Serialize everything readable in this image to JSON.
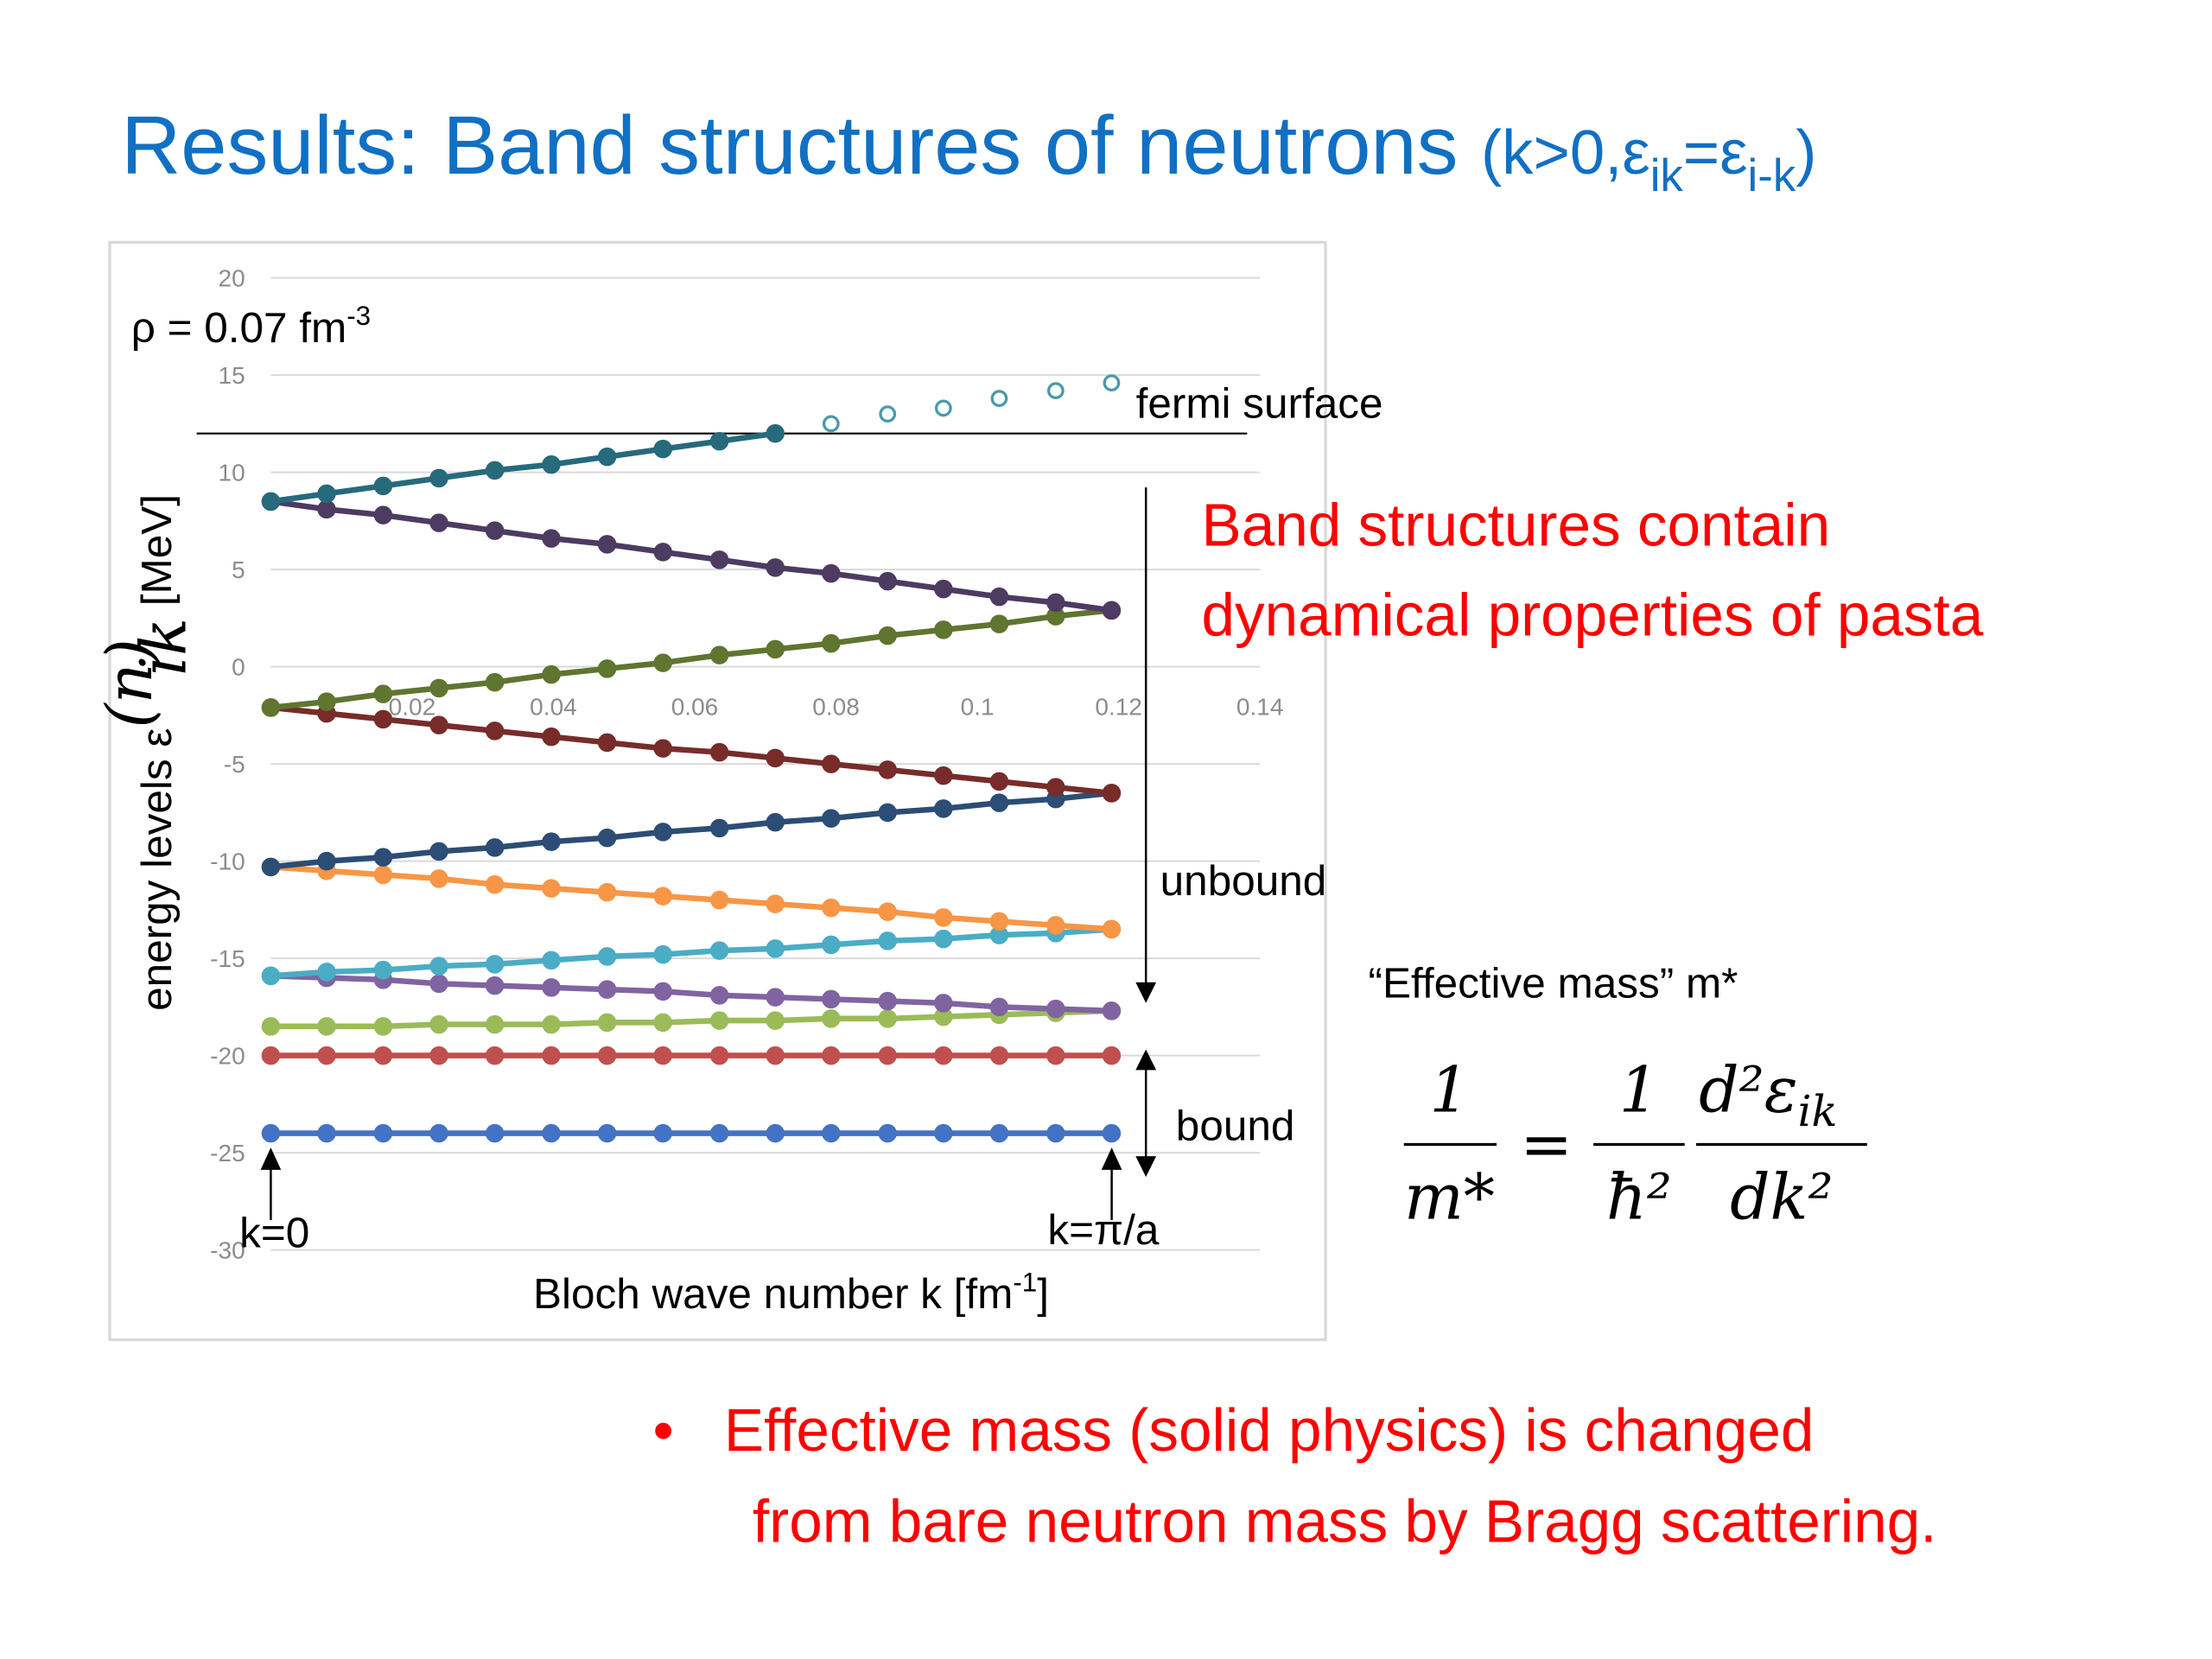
{
  "title": [
    "Results: Band structures of neutrons ",
    "(k>0,ε",
    "ik",
    "=ε",
    "i-k",
    ")"
  ],
  "chart_data": {
    "type": "line",
    "density_label": [
      "ρ = 0.07 fm",
      "-3"
    ],
    "x_label": [
      "Bloch wave number k [fm",
      "-1",
      "]"
    ],
    "y_label": [
      "energy levels ε",
      "(n)",
      "ik",
      " [MeV]"
    ],
    "x": [
      0,
      0.0079,
      0.0159,
      0.0238,
      0.0317,
      0.0397,
      0.0476,
      0.0555,
      0.0635,
      0.0714,
      0.0793,
      0.0873,
      0.0952,
      0.1031,
      0.1111,
      0.119
    ],
    "xlim": [
      0,
      0.14
    ],
    "xticks": [
      0.02,
      0.04,
      0.06,
      0.08,
      0.1,
      0.12,
      0.14
    ],
    "ylim": [
      -30,
      20
    ],
    "yticks": [
      20,
      15,
      10,
      5,
      0,
      -5,
      -10,
      -15,
      -20,
      -25,
      -30
    ],
    "grid": true,
    "series": [
      {
        "color": "#4472c4",
        "values": [
          -24,
          -24,
          -24,
          -24,
          -24,
          -24,
          -24,
          -24,
          -24,
          -24,
          -24,
          -24,
          -24,
          -24,
          -24,
          -24
        ]
      },
      {
        "color": "#c0504d",
        "values": [
          -20,
          -20,
          -20,
          -20,
          -20,
          -20,
          -20,
          -20,
          -20,
          -20,
          -20,
          -20,
          -20,
          -20,
          -20,
          -20
        ]
      },
      {
        "color": "#9bbb59",
        "values": [
          -18.5,
          -18.5,
          -18.5,
          -18.4,
          -18.4,
          -18.4,
          -18.3,
          -18.3,
          -18.2,
          -18.2,
          -18.1,
          -18.1,
          -18,
          -17.9,
          -17.8,
          -17.7
        ]
      },
      {
        "color": "#8064a2",
        "values": [
          -15.9,
          -16.0,
          -16.1,
          -16.3,
          -16.4,
          -16.5,
          -16.6,
          -16.7,
          -16.9,
          -17.0,
          -17.1,
          -17.2,
          -17.3,
          -17.5,
          -17.6,
          -17.7
        ]
      },
      {
        "color": "#4bacc6",
        "values": [
          -15.9,
          -15.7,
          -15.6,
          -15.4,
          -15.3,
          -15.1,
          -14.9,
          -14.8,
          -14.6,
          -14.5,
          -14.3,
          -14.1,
          -14.0,
          -13.8,
          -13.7,
          -13.5
        ]
      },
      {
        "color": "#f79646",
        "values": [
          -10.3,
          -10.5,
          -10.7,
          -10.9,
          -11.2,
          -11.4,
          -11.6,
          -11.8,
          -12.0,
          -12.2,
          -12.4,
          -12.6,
          -12.9,
          -13.1,
          -13.3,
          -13.5
        ]
      },
      {
        "color": "#2c4d75",
        "values": [
          -10.3,
          -10.0,
          -9.8,
          -9.5,
          -9.3,
          -9.0,
          -8.8,
          -8.5,
          -8.3,
          -8.0,
          -7.8,
          -7.5,
          -7.3,
          -7.0,
          -6.8,
          -6.5
        ]
      },
      {
        "color": "#772c2a",
        "values": [
          -2.1,
          -2.4,
          -2.7,
          -3.0,
          -3.3,
          -3.6,
          -3.9,
          -4.2,
          -4.4,
          -4.7,
          -5.0,
          -5.3,
          -5.6,
          -5.9,
          -6.2,
          -6.5
        ]
      },
      {
        "color": "#5f7530",
        "values": [
          -2.1,
          -1.8,
          -1.4,
          -1.1,
          -0.8,
          -0.4,
          -0.1,
          0.2,
          0.6,
          0.9,
          1.2,
          1.6,
          1.9,
          2.2,
          2.6,
          2.9
        ]
      },
      {
        "color": "#4d3b62",
        "values": [
          8.5,
          8.1,
          7.8,
          7.4,
          7.0,
          6.6,
          6.3,
          5.9,
          5.5,
          5.1,
          4.8,
          4.4,
          4.0,
          3.6,
          3.3,
          2.9
        ]
      },
      {
        "color": "#276a7c",
        "values": [
          8.5,
          8.9,
          9.3,
          9.7,
          10.1,
          10.4,
          10.8,
          11.2,
          11.6,
          12.0,
          null,
          null,
          null,
          null,
          null,
          null
        ]
      },
      {
        "color": "#4a9aaa",
        "line": false,
        "marker": "open",
        "values": [
          null,
          null,
          null,
          null,
          null,
          null,
          null,
          null,
          null,
          null,
          12.5,
          13.0,
          13.3,
          13.8,
          14.2,
          14.6
        ]
      }
    ],
    "fermi_level": 12,
    "fermi_label": "fermi surface",
    "unbound_label": "unbound",
    "bound_label": "bound",
    "k0_label": "k=0",
    "kmax_label": "k=π/a"
  },
  "side_text": [
    "Band structures contain",
    "dynamical properties of pasta"
  ],
  "effective_mass_label": "“Effective mass” m*",
  "formula": {
    "lhs_num": "1",
    "lhs_den": "m*",
    "equals": "=",
    "rhs1_num": "1",
    "rhs1_den": "ħ²",
    "rhs2_num": "d²ε",
    "rhs2_num_sub": "ik",
    "rhs2_den": "dk²"
  },
  "bullet": {
    "marker": "•",
    "lines": [
      "Effective mass (solid physics) is changed",
      "from bare neutron mass by Bragg scattering."
    ]
  }
}
